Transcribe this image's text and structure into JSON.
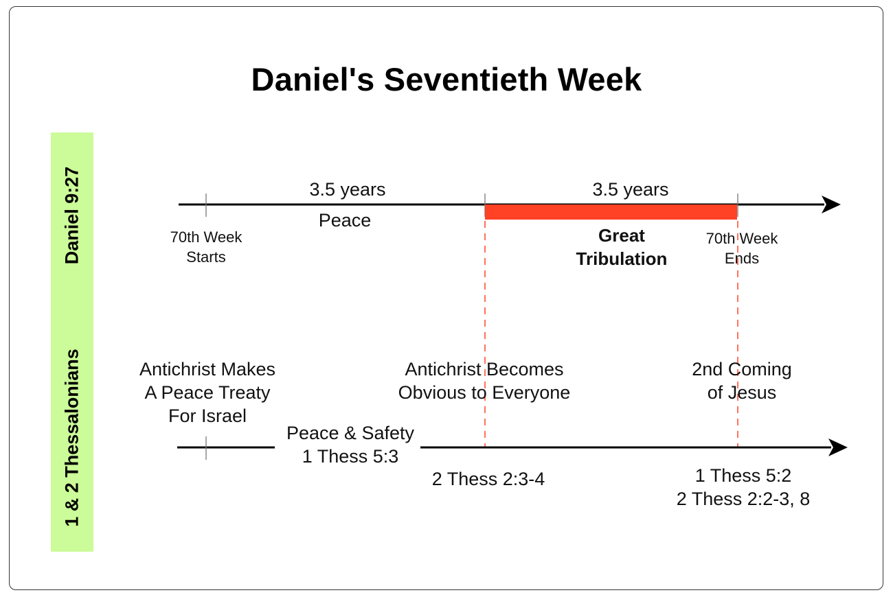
{
  "title": "Daniel's Seventieth Week",
  "bands": {
    "top": "Daniel 9:27",
    "bottom": "1 & 2 Thessalonians"
  },
  "daniel_timeline": {
    "first_half_duration": "3.5 years",
    "second_half_duration": "3.5 years",
    "first_half_label": "Peace",
    "second_half_label": "Great\nTribulation",
    "start_label": "70th Week\nStarts",
    "end_label": "70th Week\nEnds"
  },
  "thessalonians_timeline": {
    "event_start": "Antichrist Makes\nA Peace Treaty\nFor Israel",
    "event_middle": "Antichrist Becomes\nObvious to Everyone",
    "event_end": "2nd Coming\nof Jesus",
    "peace_ref": "Peace & Safety\n1 Thess 5:3",
    "middle_ref": "2 Thess 2:3-4",
    "end_ref": "1 Thess 5:2\n2 Thess 2:2-3, 8"
  },
  "colors": {
    "band": "#ccfb99",
    "tribulation": "#ff4126",
    "dashed": "#ff4126",
    "line": "#000000"
  }
}
